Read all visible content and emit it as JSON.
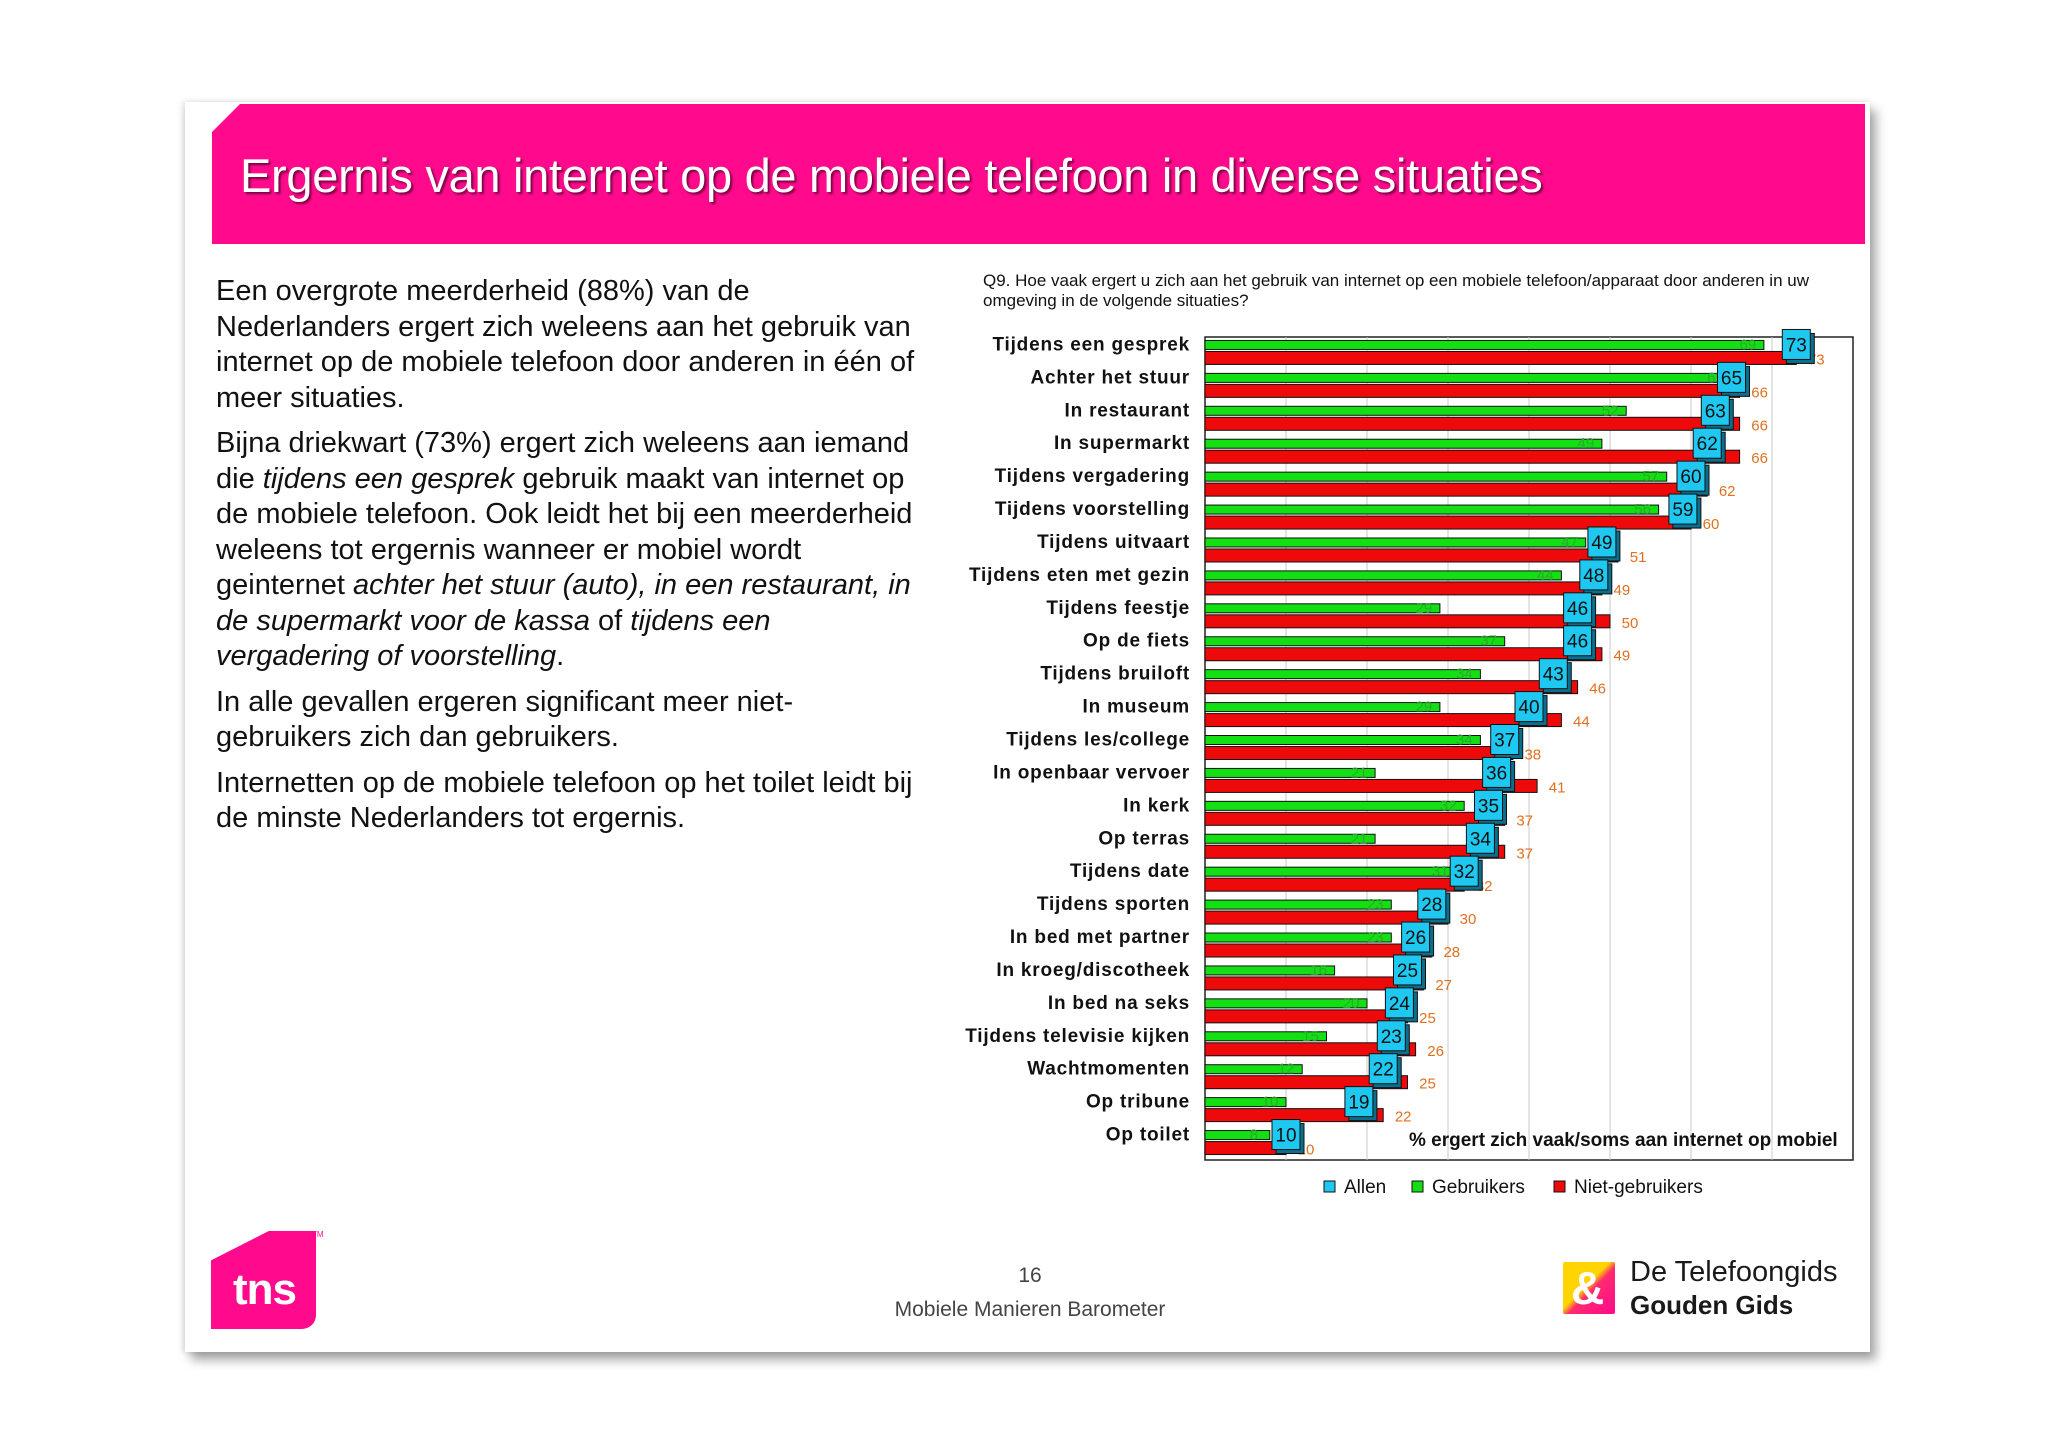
{
  "title": "Ergernis van internet op de mobiele telefoon in diverse situaties",
  "body": {
    "p1": "Een overgrote meerderheid (88%) van de Nederlanders ergert zich weleens aan het gebruik van internet op de mobiele telefoon door anderen in één of meer situaties.",
    "p2_a": "Bijna driekwart (73%) ergert zich weleens aan iemand die ",
    "p2_b": "tijdens een gesprek",
    "p2_c": " gebruik maakt van internet op de mobiele telefoon. Ook leidt het bij een meerderheid weleens tot ergernis wanneer er mobiel wordt geinternet ",
    "p2_d": "achter het stuur (auto), in een restaurant, in de supermarkt voor de kassa",
    "p2_e": " of ",
    "p2_f": "tijdens een vergadering of voorstelling",
    "p2_g": ".",
    "p3": "In alle gevallen ergeren significant meer niet-gebruikers zich dan gebruikers.",
    "p4": "Internetten op de mobiele telefoon op het toilet leidt bij de minste Nederlanders tot ergernis."
  },
  "chart_data": {
    "type": "bar",
    "orientation": "horizontal",
    "question": "Q9. Hoe vaak ergert u zich aan het gebruik van internet op een mobiele telefoon/apparaat door anderen in uw omgeving in de volgende situaties?",
    "annotation": "% ergert zich vaak/soms aan internet op mobiel",
    "xlim": [
      0,
      80
    ],
    "categories": [
      "Tijdens een gesprek",
      "Achter het stuur",
      "In restaurant",
      "In supermarkt",
      "Tijdens vergadering",
      "Tijdens voorstelling",
      "Tijdens uitvaart",
      "Tijdens eten met gezin",
      "Tijdens feestje",
      "Op de fiets",
      "Tijdens bruiloft",
      "In museum",
      "Tijdens les/college",
      "In openbaar vervoer",
      "In kerk",
      "Op terras",
      "Tijdens date",
      "Tijdens sporten",
      "In bed met partner",
      "In kroeg/discotheek",
      "In bed na seks",
      "Tijdens televisie kijken",
      "Wachtmomenten",
      "Op tribune",
      "Op toilet"
    ],
    "series": [
      {
        "name": "Allen",
        "color": "#1ec8f0",
        "values": [
          73,
          65,
          63,
          62,
          60,
          59,
          49,
          48,
          46,
          46,
          43,
          40,
          37,
          36,
          35,
          34,
          32,
          28,
          26,
          25,
          24,
          23,
          22,
          19,
          10
        ]
      },
      {
        "name": "Gebruikers",
        "color": "#12e012",
        "values": [
          69,
          65,
          52,
          49,
          57,
          56,
          47,
          44,
          29,
          37,
          34,
          29,
          34,
          21,
          32,
          21,
          31,
          23,
          23,
          16,
          20,
          15,
          12,
          10,
          8
        ]
      },
      {
        "name": "Niet-gebruikers",
        "color": "#ee0a0a",
        "values": [
          73,
          66,
          66,
          66,
          62,
          60,
          51,
          49,
          50,
          49,
          46,
          44,
          38,
          41,
          37,
          37,
          32,
          30,
          28,
          27,
          25,
          26,
          25,
          22,
          10
        ]
      }
    ]
  },
  "page_number": "16",
  "footer": "Mobiele Manieren Barometer",
  "logos": {
    "tns": "tns",
    "tm": "TM",
    "telefoongids_line1": "De Telefoongids",
    "telefoongids_line2": "Gouden Gids",
    "amp": "&"
  }
}
